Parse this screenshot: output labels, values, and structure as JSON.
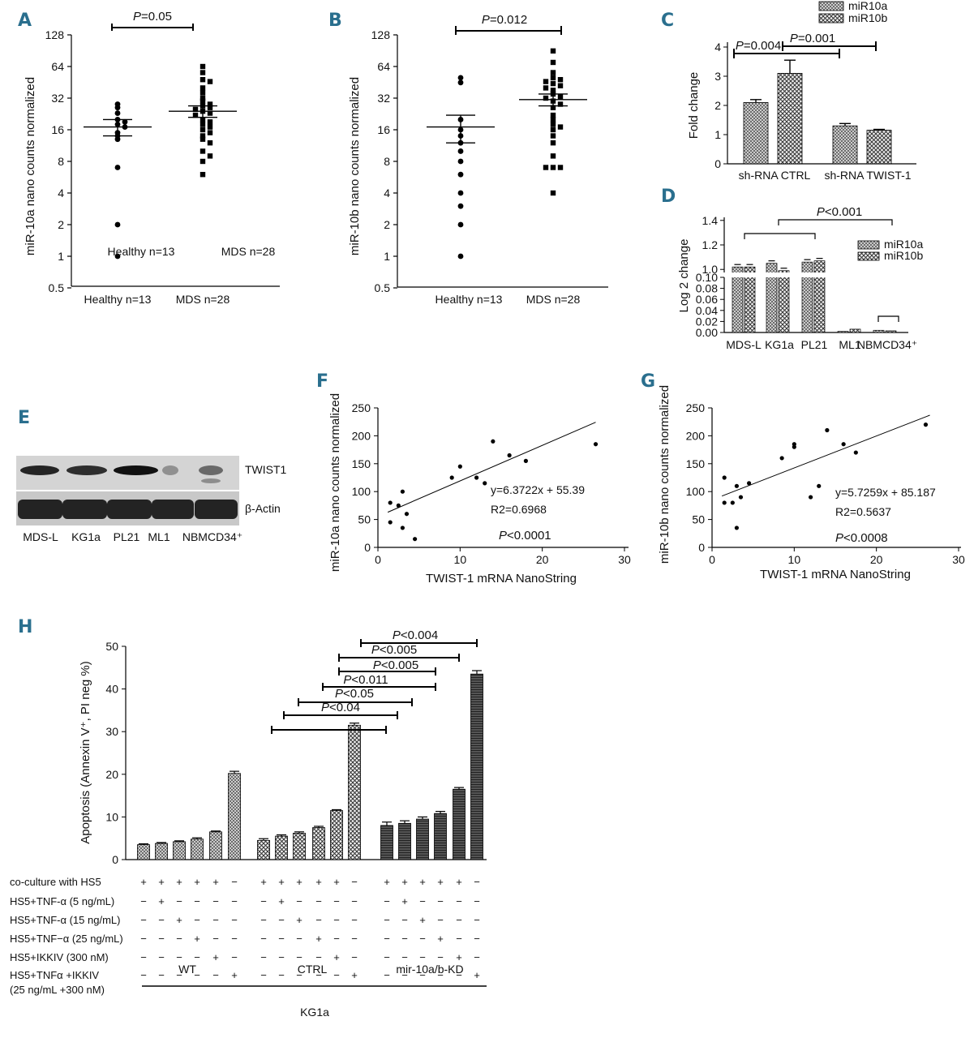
{
  "panels": {
    "A": {
      "letter": "A",
      "ylabel": "miR-10a nano counts normalized",
      "yticks": [
        "0.5",
        "1",
        "2",
        "4",
        "8",
        "16",
        "32",
        "64",
        "128"
      ],
      "ytick_values": [
        0.5,
        1,
        2,
        4,
        8,
        16,
        32,
        64,
        128
      ],
      "groups": [
        "Healthy n=13",
        "MDS n=28"
      ],
      "legend": [
        "Healthy n=13",
        "MDS n=28"
      ],
      "pvalue": {
        "p": "P",
        "rest": "=0.05"
      },
      "healthy": [
        28,
        26,
        23,
        20,
        18,
        17,
        15,
        14,
        13,
        7,
        2,
        1,
        19
      ],
      "mds": [
        64,
        56,
        48,
        46,
        40,
        36,
        32,
        30,
        28,
        27,
        26,
        25,
        24,
        23,
        22,
        20,
        19,
        18,
        17,
        16,
        15,
        14,
        13,
        12,
        10,
        9,
        8,
        6
      ],
      "healthy_mean": 17,
      "healthy_sem": [
        14,
        20
      ],
      "mds_mean": 24,
      "mds_sem": [
        21,
        27
      ]
    },
    "B": {
      "letter": "B",
      "ylabel": "miR-10b nano counts normalized",
      "yticks": [
        "0.5",
        "1",
        "2",
        "4",
        "8",
        "16",
        "32",
        "64",
        "128"
      ],
      "ytick_values": [
        0.5,
        1,
        2,
        4,
        8,
        16,
        32,
        64,
        128
      ],
      "groups": [
        "Healthy n=13",
        "MDS n=28"
      ],
      "pvalue": {
        "p": "P",
        "rest": "=0.012"
      },
      "healthy": [
        50,
        45,
        20,
        16,
        14,
        12,
        10,
        8,
        6,
        4,
        3,
        2,
        1
      ],
      "mds": [
        90,
        70,
        56,
        50,
        48,
        46,
        44,
        42,
        40,
        38,
        35,
        33,
        32,
        30,
        28,
        26,
        22,
        20,
        18,
        17,
        16,
        14,
        12,
        9,
        7,
        7,
        7,
        4
      ],
      "healthy_mean": 17,
      "healthy_sem": [
        12,
        22
      ],
      "mds_mean": 31,
      "mds_sem": [
        27,
        35
      ]
    },
    "C": {
      "letter": "C",
      "ylabel": "Fold change",
      "yticks": [
        "0",
        "1",
        "2",
        "3",
        "4"
      ],
      "categories": [
        "sh-RNA CTRL",
        "sh-RNA TWIST-1"
      ],
      "series": [
        {
          "name": "miR10a",
          "values": [
            2.1,
            1.3
          ],
          "errors": [
            0.1,
            0.08
          ]
        },
        {
          "name": "miR10b",
          "values": [
            3.1,
            1.15
          ],
          "errors": [
            0.45,
            0.03
          ]
        }
      ],
      "pvalues": [
        {
          "p": "P",
          "rest": "=0.004"
        },
        {
          "p": "P",
          "rest": "=0.001"
        }
      ]
    },
    "D": {
      "letter": "D",
      "ylabel": "Log 2 change",
      "yticks_top": [
        "1.0",
        "1.2",
        "1.4"
      ],
      "yticks_bottom": [
        "0.00",
        "0.02",
        "0.04",
        "0.06",
        "0.08",
        "0.10"
      ],
      "categories": [
        "MDS-L",
        "KG1a",
        "PL21",
        "ML1",
        "NBMCD34⁺"
      ],
      "series": [
        {
          "name": "miR10a",
          "values": [
            1.02,
            1.05,
            1.06,
            0.002,
            0.004
          ]
        },
        {
          "name": "miR10b",
          "values": [
            1.02,
            0.99,
            1.07,
            0.006,
            0.003
          ]
        }
      ],
      "pvalue": {
        "p": "P",
        "rest": "<0.001"
      }
    },
    "E": {
      "letter": "E",
      "bands": [
        "TWIST1",
        "β-Actin"
      ],
      "lanes": [
        "MDS-L",
        "KG1a",
        "PL21",
        "ML1",
        "NBMCD34⁺"
      ]
    },
    "F": {
      "letter": "F",
      "ylabel": "miR-10a nano counts normalized",
      "xlabel": "TWIST-1 mRNA NanoString",
      "xticks": [
        "0",
        "10",
        "20",
        "30"
      ],
      "yticks": [
        "0",
        "50",
        "100",
        "150",
        "200",
        "250"
      ],
      "equation": "y=6.3722x + 55.39",
      "r2": "R2=0.6968",
      "pvalue": {
        "p": "P",
        "rest": "<0.0001"
      },
      "points": [
        [
          1.5,
          80
        ],
        [
          1.5,
          45
        ],
        [
          2.5,
          75
        ],
        [
          3,
          100
        ],
        [
          3.5,
          60
        ],
        [
          4.5,
          15
        ],
        [
          3,
          35
        ],
        [
          9,
          125
        ],
        [
          10,
          145
        ],
        [
          12,
          125
        ],
        [
          13,
          115
        ],
        [
          14,
          190
        ],
        [
          16,
          165
        ],
        [
          18,
          155
        ],
        [
          26.5,
          185
        ]
      ],
      "fit": {
        "slope": 6.3722,
        "intercept": 55.39
      }
    },
    "G": {
      "letter": "G",
      "ylabel": "miR-10b nano counts normalized",
      "xlabel": "TWIST-1 mRNA NanoString",
      "xticks": [
        "0",
        "10",
        "20",
        "30"
      ],
      "yticks": [
        "0",
        "50",
        "100",
        "150",
        "200",
        "250"
      ],
      "equation": "y=5.7259x + 85.187",
      "r2": "R2=0.5637",
      "pvalue": {
        "p": "P",
        "rest": "<0.0008"
      },
      "points": [
        [
          1.5,
          125
        ],
        [
          1.5,
          80
        ],
        [
          2.5,
          80
        ],
        [
          3,
          110
        ],
        [
          3.5,
          90
        ],
        [
          4.5,
          115
        ],
        [
          3,
          35
        ],
        [
          8.5,
          160
        ],
        [
          10,
          185
        ],
        [
          10,
          180
        ],
        [
          12,
          90
        ],
        [
          13,
          110
        ],
        [
          14,
          210
        ],
        [
          16,
          185
        ],
        [
          17.5,
          170
        ],
        [
          26,
          220
        ]
      ],
      "fit": {
        "slope": 5.7259,
        "intercept": 85.187
      }
    },
    "H": {
      "letter": "H",
      "ylabel": "Apoptosis (Annexin V⁺, PI neg %)",
      "yticks": [
        "0",
        "10",
        "20",
        "30",
        "40",
        "50"
      ],
      "groups": [
        "WT",
        "CTRL",
        "mir-10a/b-KD"
      ],
      "cell_line": "KG1a",
      "bars": [
        [
          3.5,
          3.8,
          4.2,
          4.8,
          6.5,
          20.2
        ],
        [
          4.5,
          5.5,
          6.2,
          7.5,
          11.5,
          31.5
        ],
        [
          8,
          8.5,
          9.5,
          10.8,
          16.5,
          43.5
        ]
      ],
      "errors": [
        [
          0.2,
          0.2,
          0.2,
          0.3,
          0.2,
          0.5
        ],
        [
          0.4,
          0.3,
          0.3,
          0.3,
          0.2,
          0.5
        ],
        [
          0.8,
          0.6,
          0.5,
          0.5,
          0.4,
          0.8
        ]
      ],
      "pvalues": [
        {
          "p": "P",
          "rest": "<0.004"
        },
        {
          "p": "P",
          "rest": "<0.005"
        },
        {
          "p": "P",
          "rest": "<0.005"
        },
        {
          "p": "P",
          "rest": "<0.011"
        },
        {
          "p": "P",
          "rest": "<0.05"
        },
        {
          "p": "P",
          "rest": "<0.04"
        }
      ],
      "conditions": [
        "co-culture with HS5",
        "HS5+TNF-α (5 ng/mL)",
        "HS5+TNF-α (15 ng/mL)",
        "HS5+TNF−α (25 ng/mL)",
        "HS5+IKKIV (300 nM)",
        "HS5+TNFα +IKKIV",
        "(25 ng/mL +300 nM)"
      ],
      "plus": "+",
      "minus": "−"
    }
  },
  "chart_data": [
    {
      "type": "scatter",
      "title": "A",
      "ylabel": "miR-10a nano counts normalized",
      "yscale": "log2",
      "ylim": [
        0.5,
        128
      ],
      "categories": [
        "Healthy n=13",
        "MDS n=28"
      ]
    },
    {
      "type": "scatter",
      "title": "B",
      "ylabel": "miR-10b nano counts normalized",
      "yscale": "log2",
      "ylim": [
        0.5,
        128
      ],
      "categories": [
        "Healthy n=13",
        "MDS n=28"
      ]
    },
    {
      "type": "bar",
      "title": "C",
      "ylabel": "Fold change",
      "ylim": [
        0,
        4
      ],
      "categories": [
        "sh-RNA CTRL",
        "sh-RNA TWIST-1"
      ],
      "series": [
        {
          "name": "miR10a",
          "values": [
            2.1,
            1.3
          ]
        },
        {
          "name": "miR10b",
          "values": [
            3.1,
            1.15
          ]
        }
      ]
    },
    {
      "type": "bar",
      "title": "D",
      "ylabel": "Log 2 change",
      "categories": [
        "MDS-L",
        "KG1a",
        "PL21",
        "ML1",
        "NBMCD34⁺"
      ],
      "series": [
        {
          "name": "miR10a",
          "values": [
            1.02,
            1.05,
            1.06,
            0.002,
            0.004
          ]
        },
        {
          "name": "miR10b",
          "values": [
            1.02,
            0.99,
            1.07,
            0.006,
            0.003
          ]
        }
      ]
    },
    {
      "type": "scatter",
      "title": "F",
      "xlabel": "TWIST-1 mRNA NanoString",
      "ylabel": "miR-10a nano counts normalized",
      "xlim": [
        0,
        30
      ],
      "ylim": [
        0,
        250
      ]
    },
    {
      "type": "scatter",
      "title": "G",
      "xlabel": "TWIST-1 mRNA NanoString",
      "ylabel": "miR-10b nano counts normalized",
      "xlim": [
        0,
        30
      ],
      "ylim": [
        0,
        250
      ]
    },
    {
      "type": "bar",
      "title": "H",
      "ylabel": "Apoptosis (Annexin V⁺, PI neg %)",
      "ylim": [
        0,
        50
      ],
      "categories": [
        "WT",
        "CTRL",
        "mir-10a/b-KD"
      ]
    }
  ]
}
